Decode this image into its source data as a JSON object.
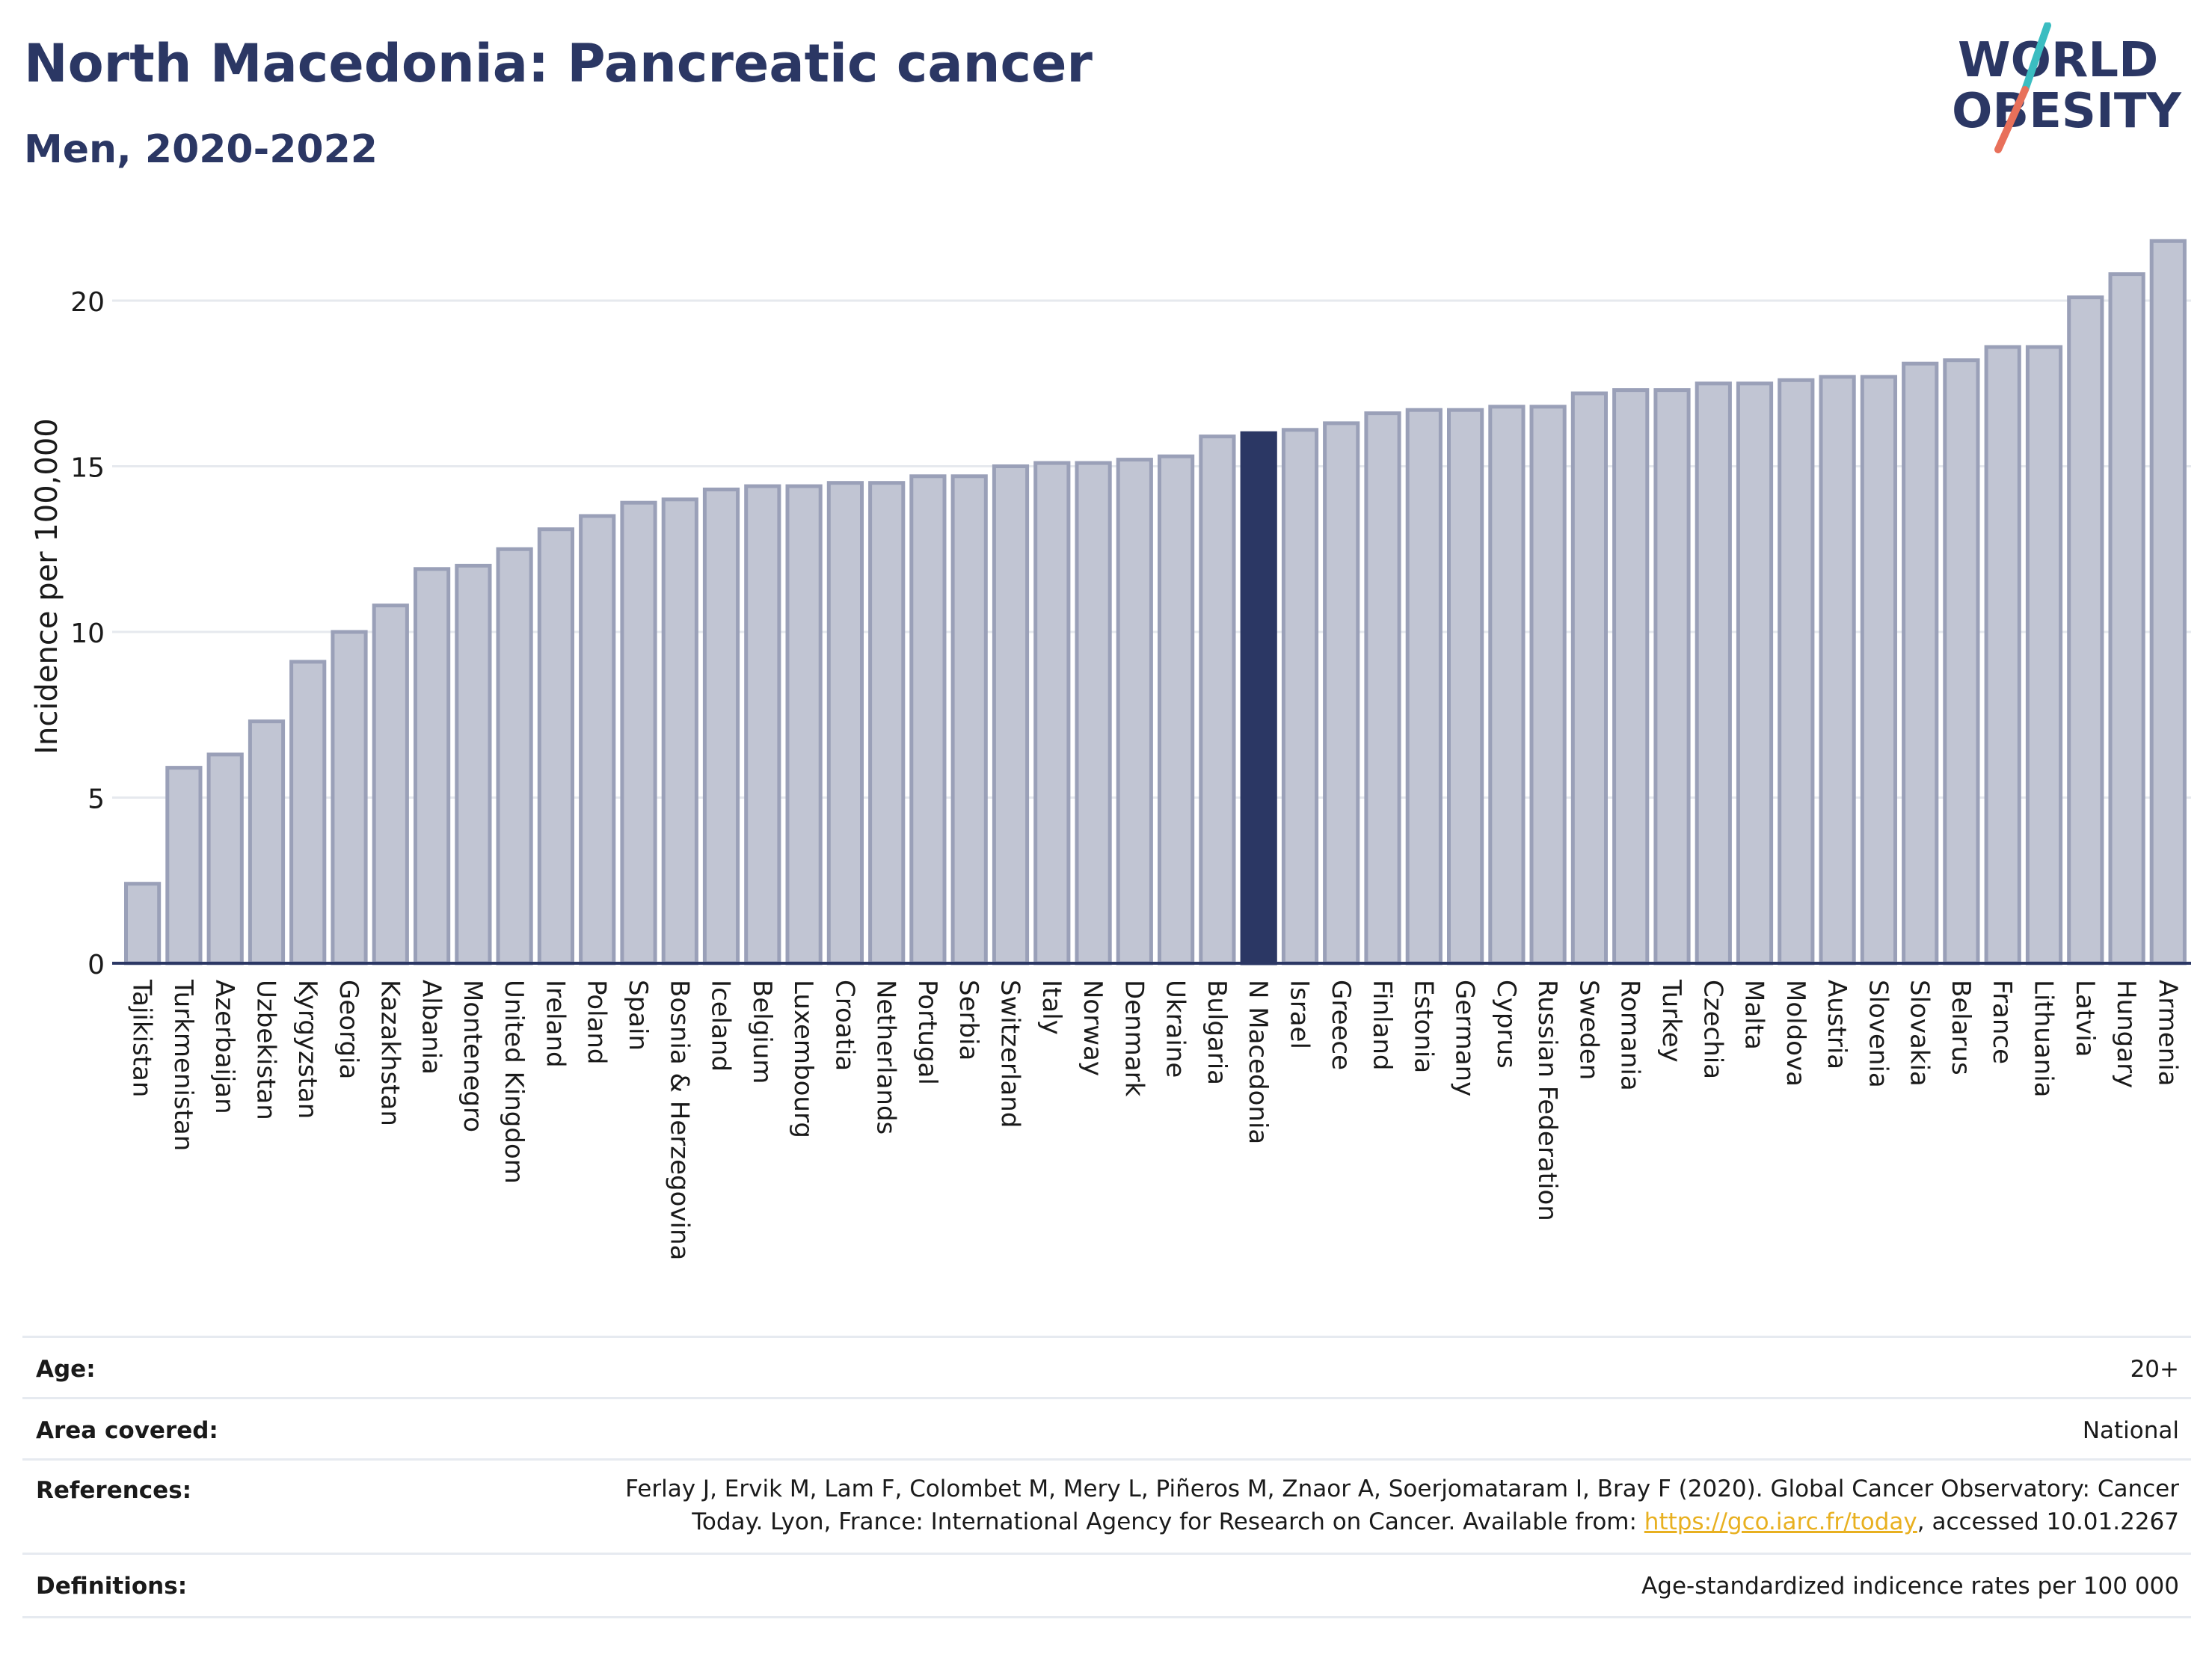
{
  "header": {
    "title": "North Macedonia: Pancreatic cancer",
    "subtitle": "Men, 2020-2022"
  },
  "logo": {
    "line1": "WORLD",
    "line2": "OBESITY",
    "colors": {
      "text": "#2b3764",
      "slash_teal": "#3bbdc1",
      "slash_coral": "#e8705a"
    }
  },
  "chart_data": {
    "type": "bar",
    "ylabel": "Incidence per 100,000",
    "ylim": [
      0,
      22
    ],
    "yticks": [
      0,
      5,
      10,
      15,
      20
    ],
    "grid": true,
    "highlight": "N Macedonia",
    "colors": {
      "bar": "#c1c5d3",
      "bar_edge": "#9aa0b8",
      "highlight": "#2b3764"
    },
    "categories": [
      "Tajikistan",
      "Turkmenistan",
      "Azerbaijan",
      "Uzbekistan",
      "Kyrgyzstan",
      "Georgia",
      "Kazakhstan",
      "Albania",
      "Montenegro",
      "United Kingdom",
      "Ireland",
      "Poland",
      "Spain",
      "Bosnia & Herzegovina",
      "Iceland",
      "Belgium",
      "Luxembourg",
      "Croatia",
      "Netherlands",
      "Portugal",
      "Serbia",
      "Switzerland",
      "Italy",
      "Norway",
      "Denmark",
      "Ukraine",
      "Bulgaria",
      "N Macedonia",
      "Israel",
      "Greece",
      "Finland",
      "Estonia",
      "Germany",
      "Cyprus",
      "Russian Federation",
      "Sweden",
      "Romania",
      "Turkey",
      "Czechia",
      "Malta",
      "Moldova",
      "Austria",
      "Slovenia",
      "Slovakia",
      "Belarus",
      "France",
      "Lithuania",
      "Latvia",
      "Hungary",
      "Armenia"
    ],
    "values": [
      2.4,
      5.9,
      6.3,
      7.3,
      9.1,
      10.0,
      10.8,
      11.9,
      12.0,
      12.5,
      13.1,
      13.5,
      13.9,
      14.0,
      14.3,
      14.4,
      14.4,
      14.5,
      14.5,
      14.7,
      14.7,
      15.0,
      15.1,
      15.1,
      15.2,
      15.3,
      15.9,
      16.0,
      16.1,
      16.3,
      16.6,
      16.7,
      16.7,
      16.8,
      16.8,
      17.2,
      17.3,
      17.3,
      17.5,
      17.5,
      17.6,
      17.7,
      17.7,
      18.1,
      18.2,
      18.6,
      18.6,
      20.1,
      20.8,
      21.8
    ]
  },
  "meta": {
    "age_label": "Age:",
    "age_value": "20+",
    "area_label": "Area covered:",
    "area_value": "National",
    "references_label": "References:",
    "references_line1": "Ferlay J, Ervik M, Lam F, Colombet M, Mery L, Piñeros M, Znaor A, Soerjomataram I, Bray F (2020). Global Cancer Observatory: Cancer",
    "references_line2_pre": "Today. Lyon, France: International Agency for Research on Cancer. Available from: ",
    "references_link": "https://gco.iarc.fr/today",
    "references_line2_post": ", accessed 10.01.2267",
    "definitions_label": "Definitions:",
    "definitions_value": "Age-standardized indicence rates per 100 000"
  }
}
